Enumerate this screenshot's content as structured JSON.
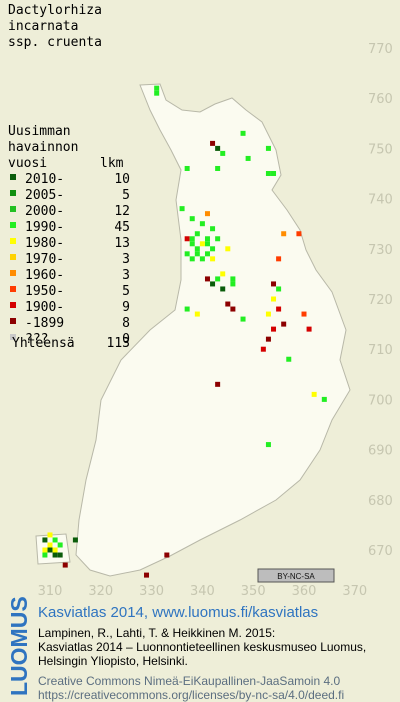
{
  "title": [
    "Dactylorhiza",
    "incarnata",
    "ssp. cruenta"
  ],
  "legend": {
    "heading": [
      "Uusimman",
      "havainnon",
      "vuosi"
    ],
    "count_header": "lkm",
    "rows": [
      {
        "label": "2010-",
        "count": 10,
        "color": "#0a5c0a"
      },
      {
        "label": "2005-",
        "count": 5,
        "color": "#109010"
      },
      {
        "label": "2000-",
        "count": 12,
        "color": "#22c022"
      },
      {
        "label": "1990-",
        "count": 45,
        "color": "#22ee22"
      },
      {
        "label": "1980-",
        "count": 13,
        "color": "#ffff00"
      },
      {
        "label": "1970-",
        "count": 3,
        "color": "#ffd200"
      },
      {
        "label": "1960-",
        "count": 3,
        "color": "#ff8c00"
      },
      {
        "label": "1950-",
        "count": 5,
        "color": "#ff3c00"
      },
      {
        "label": "1900-",
        "count": 9,
        "color": "#d40000"
      },
      {
        "label": "-1899",
        "count": 8,
        "color": "#8c0000"
      },
      {
        "label": "???",
        "count": 0,
        "color": "#c8c8c8"
      }
    ],
    "total_label": "Yhteensä",
    "total": 113
  },
  "map": {
    "xticks": [
      310,
      320,
      330,
      340,
      350,
      360,
      370
    ],
    "yticks": [
      770,
      760,
      750,
      740,
      730,
      720,
      710,
      700,
      690,
      680,
      670
    ],
    "squares": [
      [
        331,
        761,
        3
      ],
      [
        331,
        762,
        3
      ],
      [
        342,
        751,
        9
      ],
      [
        343,
        750,
        0
      ],
      [
        344,
        749,
        3
      ],
      [
        348,
        753,
        3
      ],
      [
        349,
        748,
        3
      ],
      [
        353,
        750,
        3
      ],
      [
        354,
        745,
        3
      ],
      [
        353,
        745,
        3
      ],
      [
        337,
        746,
        3
      ],
      [
        343,
        746,
        3
      ],
      [
        336,
        738,
        3
      ],
      [
        341,
        737,
        6
      ],
      [
        338,
        736,
        3
      ],
      [
        340,
        735,
        3
      ],
      [
        342,
        734,
        3
      ],
      [
        337,
        732,
        8
      ],
      [
        338,
        732,
        3
      ],
      [
        339,
        733,
        3
      ],
      [
        341,
        732,
        3
      ],
      [
        343,
        732,
        3
      ],
      [
        338,
        731,
        3
      ],
      [
        339,
        730,
        3
      ],
      [
        340,
        731,
        4
      ],
      [
        341,
        731,
        3
      ],
      [
        342,
        730,
        3
      ],
      [
        337,
        729,
        3
      ],
      [
        339,
        729,
        3
      ],
      [
        341,
        729,
        3
      ],
      [
        338,
        728,
        3
      ],
      [
        340,
        728,
        3
      ],
      [
        342,
        728,
        4
      ],
      [
        345,
        730,
        4
      ],
      [
        356,
        733,
        6
      ],
      [
        359,
        733,
        7
      ],
      [
        355,
        728,
        7
      ],
      [
        344,
        725,
        4
      ],
      [
        346,
        724,
        3
      ],
      [
        346,
        723,
        3
      ],
      [
        343,
        724,
        3
      ],
      [
        342,
        723,
        0
      ],
      [
        344,
        722,
        0
      ],
      [
        341,
        724,
        9
      ],
      [
        354,
        723,
        9
      ],
      [
        355,
        722,
        3
      ],
      [
        337,
        718,
        3
      ],
      [
        339,
        717,
        4
      ],
      [
        345,
        719,
        9
      ],
      [
        346,
        718,
        9
      ],
      [
        348,
        716,
        3
      ],
      [
        354,
        720,
        4
      ],
      [
        355,
        718,
        8
      ],
      [
        353,
        717,
        4
      ],
      [
        354,
        714,
        8
      ],
      [
        356,
        715,
        9
      ],
      [
        353,
        712,
        9
      ],
      [
        352,
        710,
        8
      ],
      [
        357,
        708,
        3
      ],
      [
        360,
        717,
        7
      ],
      [
        361,
        714,
        8
      ],
      [
        343,
        703,
        9
      ],
      [
        362,
        701,
        4
      ],
      [
        364,
        700,
        3
      ],
      [
        353,
        691,
        3
      ],
      [
        309,
        672,
        0
      ],
      [
        310,
        671,
        4
      ],
      [
        311,
        672,
        3
      ],
      [
        309,
        670,
        4
      ],
      [
        310,
        670,
        0
      ],
      [
        311,
        670,
        4
      ],
      [
        309,
        669,
        3
      ],
      [
        311,
        669,
        0
      ],
      [
        312,
        671,
        3
      ],
      [
        312,
        669,
        0
      ],
      [
        310,
        673,
        4
      ],
      [
        315,
        672,
        0
      ],
      [
        313,
        667,
        9
      ],
      [
        333,
        669,
        9
      ],
      [
        329,
        665,
        9
      ]
    ]
  },
  "badge": "BY-NC-SA",
  "logo": "LUOMUS",
  "credits": {
    "link": "Kasviatlas 2014, www.luomus.fi/kasviatlas",
    "citation": [
      "Lampinen, R., Lahti, T. & Heikkinen M. 2015:",
      "Kasviatlas 2014 – Luonnontieteellinen keskusmuseo Luomus,",
      "Helsingin Yliopisto, Helsinki."
    ],
    "license": [
      "Creative Commons Nimeä-EiKaupallinen-JaaSamoin 4.0",
      "https://creativecommons.org/licenses/by-nc-sa/4.0/deed.fi"
    ]
  }
}
